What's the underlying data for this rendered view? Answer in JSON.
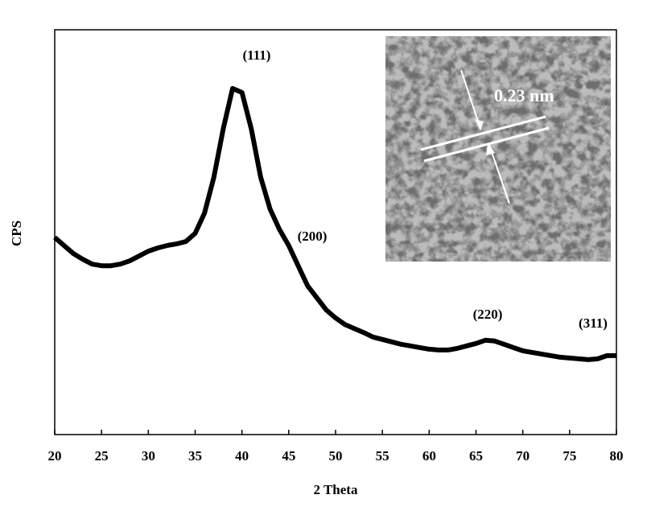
{
  "chart_data": {
    "type": "line",
    "xlabel": "2 Theta",
    "ylabel": "CPS",
    "x": [
      20,
      21,
      22,
      23,
      24,
      25,
      26,
      27,
      28,
      29,
      30,
      31,
      32,
      33,
      34,
      35,
      36,
      37,
      38,
      39,
      40,
      41,
      42,
      43,
      44,
      45,
      46,
      47,
      48,
      49,
      50,
      51,
      52,
      53,
      54,
      55,
      56,
      57,
      58,
      59,
      60,
      61,
      62,
      63,
      64,
      65,
      66,
      67,
      68,
      69,
      70,
      71,
      72,
      73,
      74,
      75,
      76,
      77,
      78,
      79,
      80
    ],
    "series": [
      {
        "color": "#000000",
        "values": [
          48.7,
          46.7,
          44.7,
          43.3,
          42.1,
          41.7,
          41.7,
          42.1,
          42.9,
          44.1,
          45.3,
          46.1,
          46.7,
          47.1,
          47.7,
          49.7,
          54.7,
          63.6,
          75.5,
          85.5,
          84.5,
          75.5,
          63.6,
          55.7,
          50.7,
          46.7,
          41.7,
          36.8,
          33.8,
          30.8,
          28.8,
          27.2,
          26.2,
          25.2,
          24.1,
          23.5,
          22.9,
          22.3,
          21.9,
          21.5,
          21.1,
          20.9,
          20.9,
          21.3,
          21.9,
          22.5,
          23.3,
          23.1,
          22.3,
          21.5,
          20.7,
          20.3,
          19.9,
          19.5,
          19.1,
          18.9,
          18.7,
          18.5,
          18.7,
          19.5,
          19.5
        ]
      }
    ],
    "xlim": [
      20,
      80
    ],
    "xticks": [
      20,
      25,
      30,
      35,
      40,
      45,
      50,
      55,
      60,
      65,
      70,
      75,
      80
    ],
    "ylim": [
      0,
      100
    ],
    "annotations": [
      "(111)",
      "(200)",
      "(220)",
      "(311)"
    ],
    "inset_label": "0.23 nm"
  }
}
